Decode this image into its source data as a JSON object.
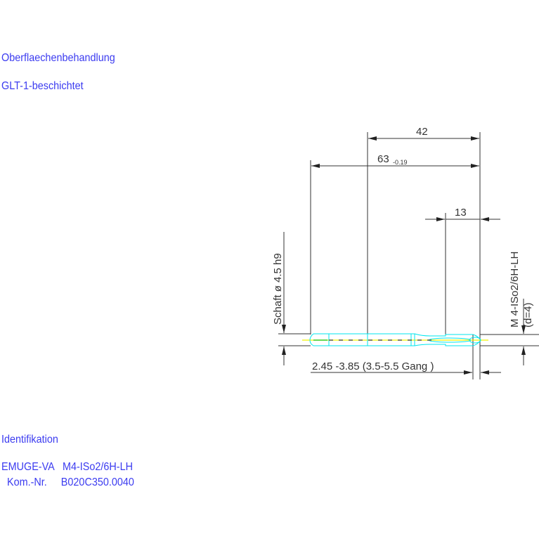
{
  "notes": {
    "surface_heading": "Oberflaechenbehandlung",
    "surface_value": "GLT-1-beschichtet",
    "ident_heading": "Identifikation",
    "ident_line1": "EMUGE-VA   M4-ISo2/6H-LH",
    "ident_line2": "  Kom.-Nr.     B020C350.0040"
  },
  "drawing": {
    "dim_thread_length": "42",
    "dim_total_length": "63",
    "dim_total_tolerance": "-0.19",
    "dim_chamfer": "13",
    "shank_label": "Schaft  ø  4.5   h9",
    "thread_label": "M  4-ISo2/6H-LH",
    "thread_diameter": "(d=4)",
    "chamfer_label": "2.45  -3.85 (3.5-5.5  Gang   )",
    "colors": {
      "text": "#3b3bf0",
      "dimension": "#333333",
      "tool_outline": "#00e5ee",
      "axis": "#f2f200"
    }
  }
}
